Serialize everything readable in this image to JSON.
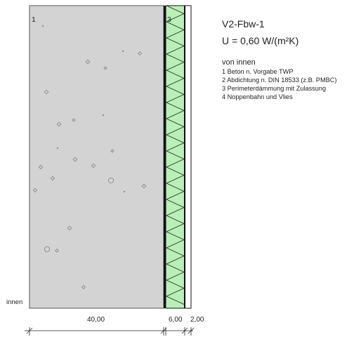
{
  "element": {
    "name": "V2-Fbw-1",
    "u_value": "U = 0,60 W/(m²K)"
  },
  "legend": {
    "heading": "von innen",
    "items": [
      "1 Beton n. Vorgabe TWP",
      "2 Abdichtung n. DIN 18533 (z.B. PMBC)",
      "3 Perimeterdämmung mit Zulassung",
      "4 Noppenbahn und Vlies"
    ]
  },
  "labels": {
    "layer1": "1",
    "layer3": "3",
    "inside": "innen"
  },
  "dimensions": {
    "concrete": "40,00",
    "insulation": "6,00",
    "drainage": "2,00"
  },
  "colors": {
    "concrete": "#d3d3d3",
    "insulation": "#b8f0b8",
    "membrane": "#111111",
    "drainage": "#ffffff"
  }
}
